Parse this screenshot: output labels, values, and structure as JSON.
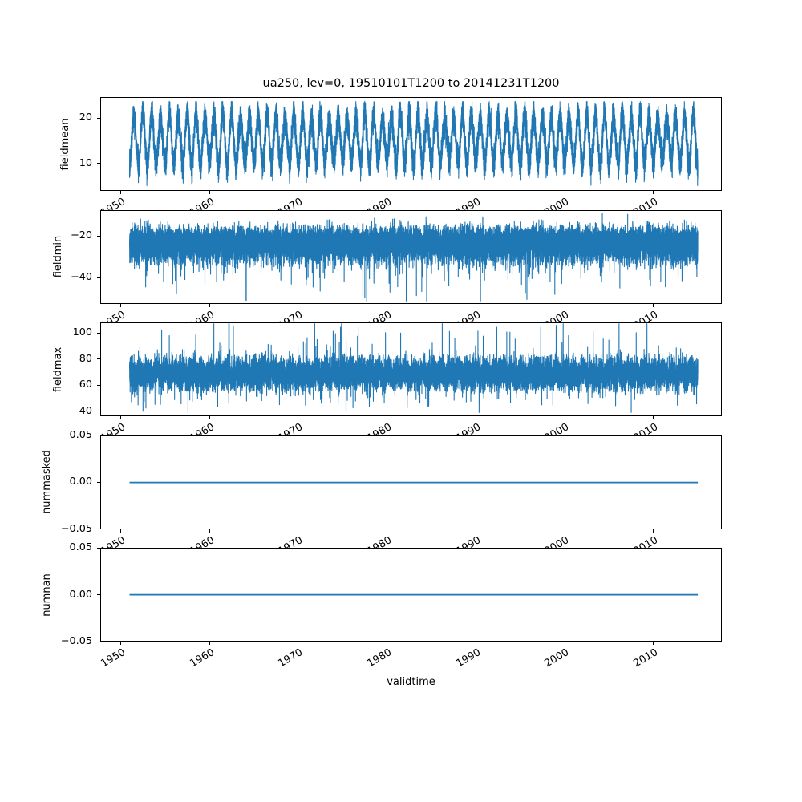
{
  "chart_data": {
    "type": "line",
    "title": "ua250, lev=0, 19510101T1200 to 20141231T1200",
    "xlabel": "validtime",
    "grid": false,
    "legend": "none",
    "line_color": "#1f77b4",
    "background_color": "#ffffff",
    "x_units": "year",
    "xlim": [
      1947.7,
      2017.7
    ],
    "x_data_start": 1951.0,
    "x_data_end": 2015.0,
    "x_sampling": "daily",
    "xticks": [
      {
        "value": 1950,
        "label": "1950"
      },
      {
        "value": 1960,
        "label": "1960"
      },
      {
        "value": 1970,
        "label": "1970"
      },
      {
        "value": 1980,
        "label": "1980"
      },
      {
        "value": 1990,
        "label": "1990"
      },
      {
        "value": 2000,
        "label": "2000"
      },
      {
        "value": 2010,
        "label": "2010"
      }
    ],
    "xtick_rotation_deg": 30,
    "subplots": [
      {
        "name": "fieldmean",
        "ylabel": "fieldmean",
        "ylim": [
          3.9,
          24.6
        ],
        "yticks": [
          {
            "value": 10,
            "label": "10"
          },
          {
            "value": 20,
            "label": "20"
          }
        ],
        "series": {
          "kind": "seasonal-noise",
          "annual_mean": 15.2,
          "seasonal_amplitude": 5.1,
          "noise_sigma": 1.45,
          "seasonal_peak_range": [
            19.5,
            22.5
          ],
          "seasonal_trough_range": [
            6.0,
            9.5
          ],
          "observed_min": 4.6,
          "observed_max": 23.6
        }
      },
      {
        "name": "fieldmin",
        "ylabel": "fieldmin",
        "ylim": [
          -52.5,
          -7.5
        ],
        "yticks": [
          {
            "value": -20,
            "label": "−20"
          },
          {
            "value": -40,
            "label": "−40"
          }
        ],
        "series": {
          "kind": "noisy-band-downspikes",
          "band_center": -22,
          "dense_band": [
            -33,
            -13
          ],
          "spike_depth_range": [
            -51,
            -38
          ],
          "observed_min": -51,
          "observed_max": -9
        }
      },
      {
        "name": "fieldmax",
        "ylabel": "fieldmax",
        "ylim": [
          36,
          108
        ],
        "yticks": [
          {
            "value": 40,
            "label": "40"
          },
          {
            "value": 60,
            "label": "60"
          },
          {
            "value": 80,
            "label": "80"
          },
          {
            "value": 100,
            "label": "100"
          }
        ],
        "series": {
          "kind": "noisy-band-updownspikes",
          "band_center": 67,
          "dense_band": [
            55,
            84
          ],
          "up_spike_range": [
            90,
            106
          ],
          "down_spike_range": [
            39,
            46
          ],
          "observed_min": 39,
          "observed_max": 106
        }
      },
      {
        "name": "nummasked",
        "ylabel": "nummasked",
        "ylim": [
          -0.05,
          0.05
        ],
        "yticks": [
          {
            "value": 0.05,
            "label": "0.05"
          },
          {
            "value": 0.0,
            "label": "0.00"
          },
          {
            "value": -0.05,
            "label": "−0.05"
          }
        ],
        "series": {
          "kind": "constant",
          "value": 0.0
        }
      },
      {
        "name": "numnan",
        "ylabel": "numnan",
        "ylim": [
          -0.05,
          0.05
        ],
        "yticks": [
          {
            "value": 0.05,
            "label": "0.05"
          },
          {
            "value": 0.0,
            "label": "0.00"
          },
          {
            "value": -0.05,
            "label": "−0.05"
          }
        ],
        "series": {
          "kind": "constant",
          "value": 0.0
        }
      }
    ]
  }
}
